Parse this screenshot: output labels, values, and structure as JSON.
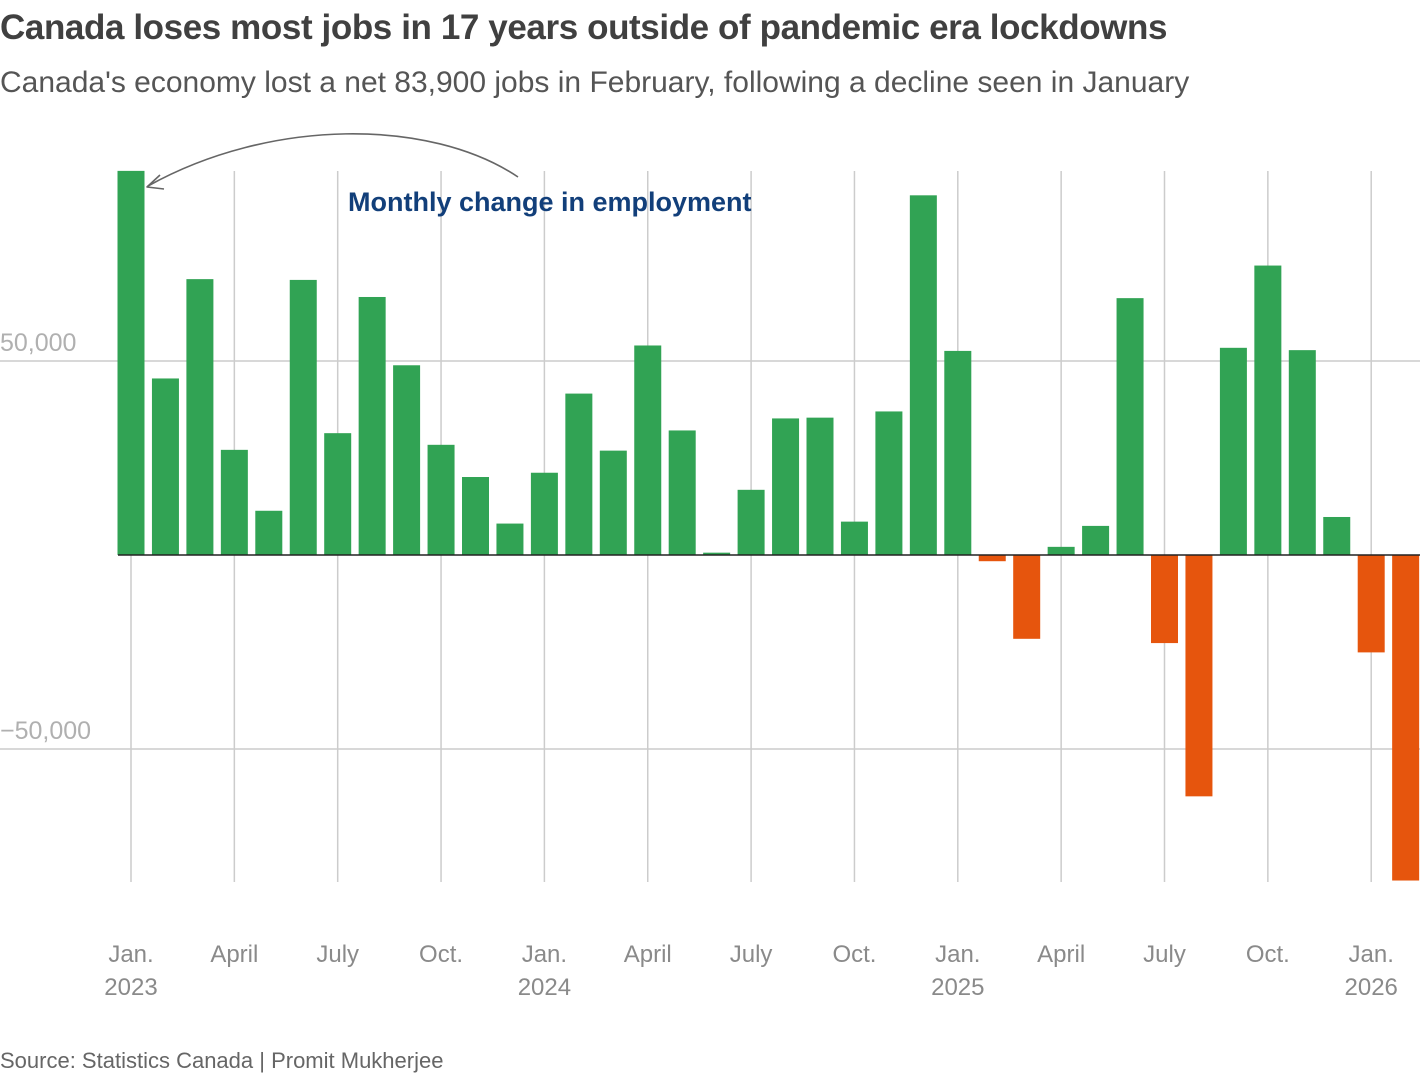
{
  "title": "Canada loses most jobs in 17 years outside of pandemic era lockdowns",
  "subtitle": "Canada's economy lost a net 83,900 jobs in February, following a decline seen in January",
  "source": "Source: Statistics Canada | Promit Mukherjee",
  "colors": {
    "positive": "#31a354",
    "negative": "#e6550d",
    "grid": "#cccccc",
    "baseline": "#222222",
    "annotation": "#123f7a"
  },
  "chart_data": {
    "type": "bar",
    "title": "Canada loses most jobs in 17 years outside of pandemic era lockdowns",
    "subtitle": "Canada's economy lost a net 83,900 jobs in February, following a decline seen in January",
    "annotation": "Monthly change in employment",
    "xlabel": "",
    "ylabel": "",
    "ylim": [
      -84000,
      99000
    ],
    "yticks": [
      50000,
      -50000
    ],
    "ytick_labels": [
      "50,000",
      "−50,000"
    ],
    "grid": true,
    "categories": [
      "Jan 2023",
      "Feb 2023",
      "Mar 2023",
      "Apr 2023",
      "May 2023",
      "Jun 2023",
      "Jul 2023",
      "Aug 2023",
      "Sep 2023",
      "Oct 2023",
      "Nov 2023",
      "Dec 2023",
      "Jan 2024",
      "Feb 2024",
      "Mar 2024",
      "Apr 2024",
      "May 2024",
      "Jun 2024",
      "Jul 2024",
      "Aug 2024",
      "Sep 2024",
      "Oct 2024",
      "Nov 2024",
      "Dec 2024",
      "Jan 2025",
      "Feb 2025",
      "Mar 2025",
      "Apr 2025",
      "May 2025",
      "Jun 2025",
      "Jul 2025",
      "Aug 2025",
      "Sep 2025",
      "Oct 2025",
      "Nov 2025",
      "Dec 2025",
      "Jan 2026",
      "Feb 2026"
    ],
    "values": [
      99000,
      45500,
      71100,
      27100,
      11400,
      70900,
      31400,
      66500,
      48900,
      28400,
      20100,
      8100,
      21200,
      41600,
      26900,
      54000,
      32100,
      600,
      16800,
      35200,
      35400,
      8600,
      37000,
      92700,
      52600,
      -1600,
      -21600,
      2100,
      7500,
      66200,
      -22700,
      -62200,
      53400,
      74600,
      52800,
      9800,
      -25100,
      -83900
    ],
    "xtick_labels": [
      {
        "index": 0,
        "line1": "Jan.",
        "line2": "2023"
      },
      {
        "index": 3,
        "line1": "April",
        "line2": ""
      },
      {
        "index": 6,
        "line1": "July",
        "line2": ""
      },
      {
        "index": 9,
        "line1": "Oct.",
        "line2": ""
      },
      {
        "index": 12,
        "line1": "Jan.",
        "line2": "2024"
      },
      {
        "index": 15,
        "line1": "April",
        "line2": ""
      },
      {
        "index": 18,
        "line1": "July",
        "line2": ""
      },
      {
        "index": 21,
        "line1": "Oct.",
        "line2": ""
      },
      {
        "index": 24,
        "line1": "Jan.",
        "line2": "2025"
      },
      {
        "index": 27,
        "line1": "April",
        "line2": ""
      },
      {
        "index": 30,
        "line1": "July",
        "line2": ""
      },
      {
        "index": 33,
        "line1": "Oct.",
        "line2": ""
      },
      {
        "index": 36,
        "line1": "Jan.",
        "line2": "2026"
      }
    ]
  }
}
